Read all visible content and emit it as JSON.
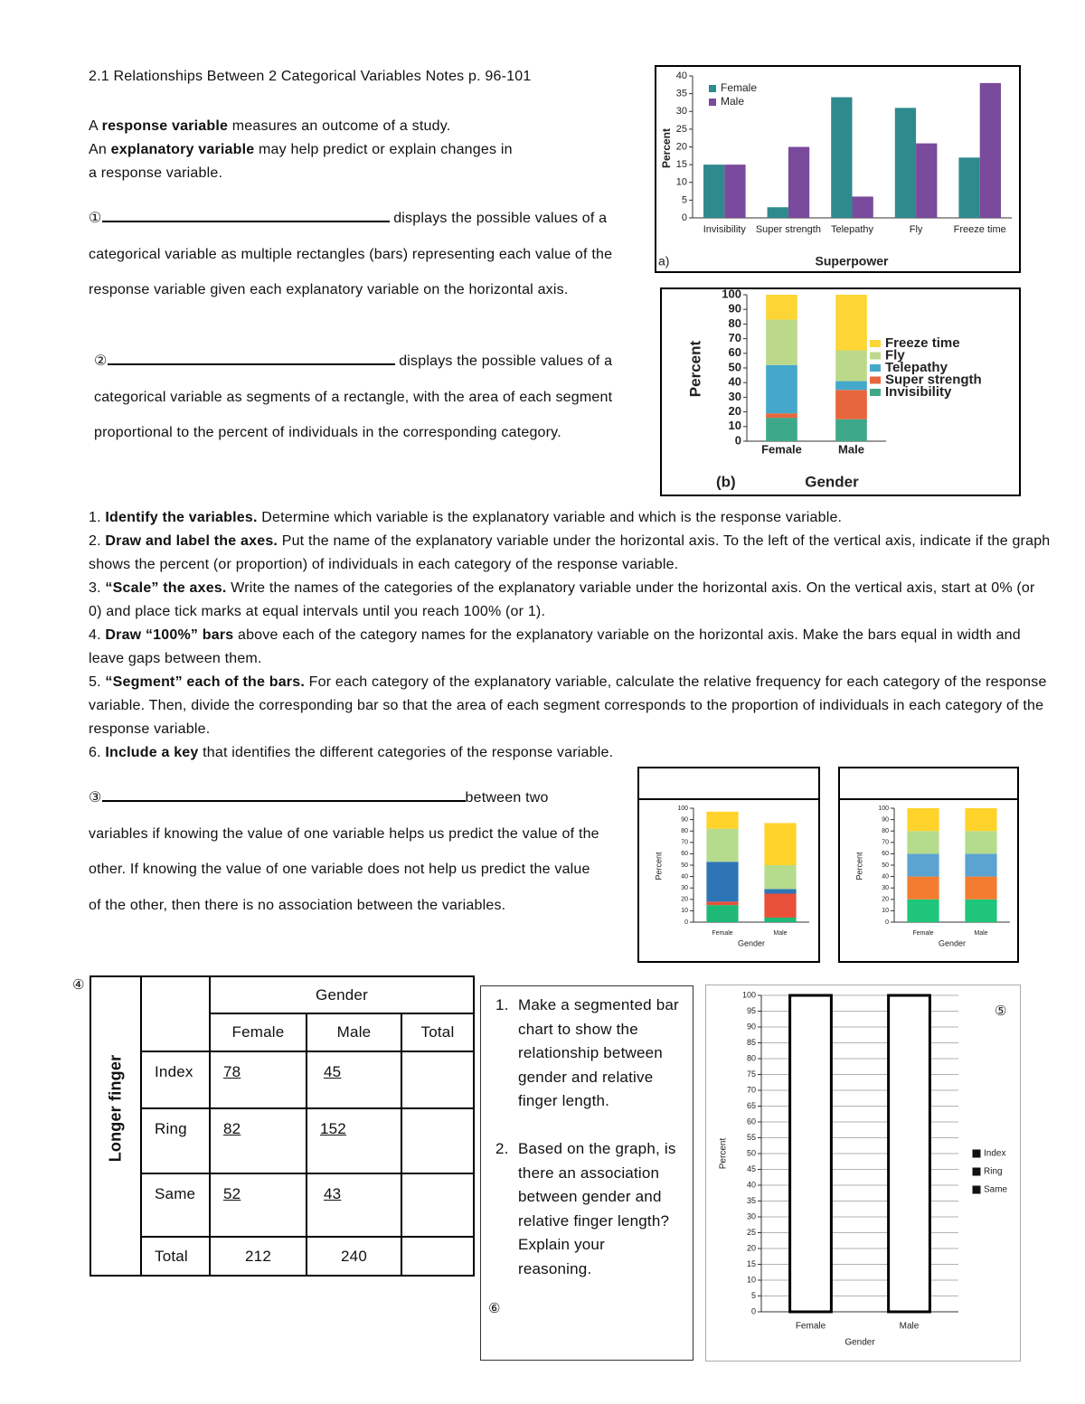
{
  "title": "2.1 Relationships Between 2 Categorical Variables Notes p. 96-101",
  "definitions": [
    {
      "before": "A ",
      "term": "response variable",
      "after": " measures an outcome of a study."
    },
    {
      "before": "An ",
      "term": "explanatory variable",
      "after": " may help predict or explain changes in a response variable."
    }
  ],
  "blanks": [
    {
      "marker": "①",
      "text": "displays the possible values of a categorical variable as multiple rectangles (bars) representing each value of the response variable given each explanatory variable on the horizontal axis."
    },
    {
      "marker": "②",
      "text": "displays the possible values of a categorical variable as segments of a rectangle, with the area of each segment proportional to the percent of individuals in the corresponding category."
    },
    {
      "marker": "③",
      "text": "between two variables if knowing the value of one variable helps us predict the value of the other. If knowing the value of one variable does not help us predict the value of the other, then there is no association between the variables."
    }
  ],
  "steps": [
    {
      "number": "1.",
      "lead": "Identify the variables.",
      "text": " Determine which variable is the explanatory variable and which is the response variable."
    },
    {
      "number": "2.",
      "lead": "Draw and label the axes.",
      "text": " Put the name of the explanatory variable under the horizontal axis. To the left of the vertical axis, indicate if the graph shows the percent (or proportion) of individuals in each category of the response variable."
    },
    {
      "number": "3.",
      "lead": "“Scale” the axes.",
      "text": " Write the names of the categories of the explanatory variable under the horizontal axis. On the vertical axis, start at 0% (or 0) and place tick marks at equal intervals until you reach 100% (or 1)."
    },
    {
      "number": "4.",
      "lead": "Draw “100%” bars",
      "text": " above each of the category names for the explanatory variable on the horizontal axis. Make the bars equal in width and leave gaps between them."
    },
    {
      "number": "5.",
      "lead": "“Segment” each of the bars.",
      "text": " For each category of the explanatory variable, calculate the relative frequency for each category of the response variable. Then, divide the corresponding bar so that the area of each segment corresponds to the proportion of individuals in each category of the response variable."
    },
    {
      "number": "6.",
      "lead": "Include a key",
      "text": " that identifies the different categories of the response variable."
    }
  ],
  "table": {
    "marker": "④",
    "row_header": "Longer finger",
    "column_group": "Gender",
    "columns": [
      "Female",
      "Male",
      "Total"
    ],
    "rows": [
      {
        "label": "Index",
        "values": [
          78,
          45
        ]
      },
      {
        "label": "Ring",
        "values": [
          82,
          152
        ]
      },
      {
        "label": "Same",
        "values": [
          52,
          43
        ]
      },
      {
        "label": "Total",
        "values": [
          212,
          240
        ]
      }
    ]
  },
  "questions": {
    "items": [
      {
        "number": "1.",
        "text": "Make a segmented bar chart to show the relationship between gender and relative finger length."
      },
      {
        "number": "2.",
        "text": "Based on the graph, is there an association between gender and relative finger length? Explain your reasoning."
      }
    ],
    "marker": "⑥"
  },
  "chart_data": [
    {
      "type": "bar",
      "panel_label": "a)",
      "ylabel": "Percent",
      "xlabel": "Superpower",
      "categories": [
        "Invisibility",
        "Super strength",
        "Telepathy",
        "Fly",
        "Freeze time"
      ],
      "series": [
        {
          "name": "Female",
          "color": "#2f8a8e",
          "values": [
            15,
            3,
            34,
            31,
            17
          ]
        },
        {
          "name": "Male",
          "color": "#7a4a9c",
          "values": [
            15,
            20,
            6,
            21,
            38
          ]
        }
      ],
      "ylim": [
        0,
        40
      ],
      "yticks": [
        0,
        5,
        10,
        15,
        20,
        25,
        30,
        35,
        40
      ],
      "grid": false,
      "legend": "upper left"
    },
    {
      "type": "stacked_bar",
      "panel_label": "(b)",
      "ylabel": "Percent",
      "xlabel": "Gender",
      "categories": [
        "Female",
        "Male"
      ],
      "series": [
        {
          "name": "Invisibility",
          "color": "#3ea98a",
          "values": [
            16,
            15
          ]
        },
        {
          "name": "Super strength",
          "color": "#e8663d",
          "values": [
            3,
            20
          ]
        },
        {
          "name": "Telepathy",
          "color": "#45a8cb",
          "values": [
            33,
            6
          ]
        },
        {
          "name": "Fly",
          "color": "#bcd98b",
          "values": [
            31,
            21
          ]
        },
        {
          "name": "Freeze time",
          "color": "#fdd535",
          "values": [
            17,
            38
          ]
        }
      ],
      "ylim": [
        0,
        100
      ],
      "yticks": [
        0,
        10,
        20,
        30,
        40,
        50,
        60,
        70,
        80,
        90,
        100
      ],
      "grid": false,
      "legend": "right"
    },
    {
      "type": "stacked_bar",
      "ylabel": "Percent",
      "xlabel": "Gender",
      "categories": [
        "Female",
        "Male"
      ],
      "series": [
        {
          "color": "#1fb877",
          "values": [
            15,
            4
          ]
        },
        {
          "color": "#e8503a",
          "values": [
            3,
            21
          ]
        },
        {
          "color": "#2e75b6",
          "values": [
            35,
            4
          ]
        },
        {
          "color": "#b5dc8c",
          "values": [
            29,
            21
          ]
        },
        {
          "color": "#ffd32a",
          "values": [
            15,
            37
          ]
        }
      ],
      "ylim": [
        0,
        100
      ],
      "yticks": [
        0,
        10,
        20,
        30,
        40,
        50,
        60,
        70,
        80,
        90,
        100
      ],
      "grid": false
    },
    {
      "type": "stacked_bar",
      "ylabel": "Percent",
      "xlabel": "Gender",
      "categories": [
        "Female",
        "Male"
      ],
      "series": [
        {
          "color": "#1fc57a",
          "values": [
            20,
            20
          ]
        },
        {
          "color": "#f47c30",
          "values": [
            20,
            20
          ]
        },
        {
          "color": "#5ba3d0",
          "values": [
            20,
            20
          ]
        },
        {
          "color": "#b5dc8c",
          "values": [
            20,
            20
          ]
        },
        {
          "color": "#ffd32a",
          "values": [
            20,
            20
          ]
        }
      ],
      "ylim": [
        0,
        100
      ],
      "yticks": [
        0,
        10,
        20,
        30,
        40,
        50,
        60,
        70,
        80,
        90,
        100
      ],
      "grid": false
    },
    {
      "type": "bar",
      "marker": "⑤",
      "ylabel": "Percent",
      "xlabel": "Gender",
      "categories": [
        "Female",
        "Male"
      ],
      "series": [
        {
          "color": "#ffffff",
          "values": [
            100,
            100
          ]
        }
      ],
      "edgecolor": "#000000",
      "legend_entries": [
        "Index",
        "Ring",
        "Same"
      ],
      "ylim": [
        0,
        100
      ],
      "yticks": [
        0,
        5,
        10,
        15,
        20,
        25,
        30,
        35,
        40,
        45,
        50,
        55,
        60,
        65,
        70,
        75,
        80,
        85,
        90,
        95,
        100
      ],
      "grid": true
    }
  ]
}
